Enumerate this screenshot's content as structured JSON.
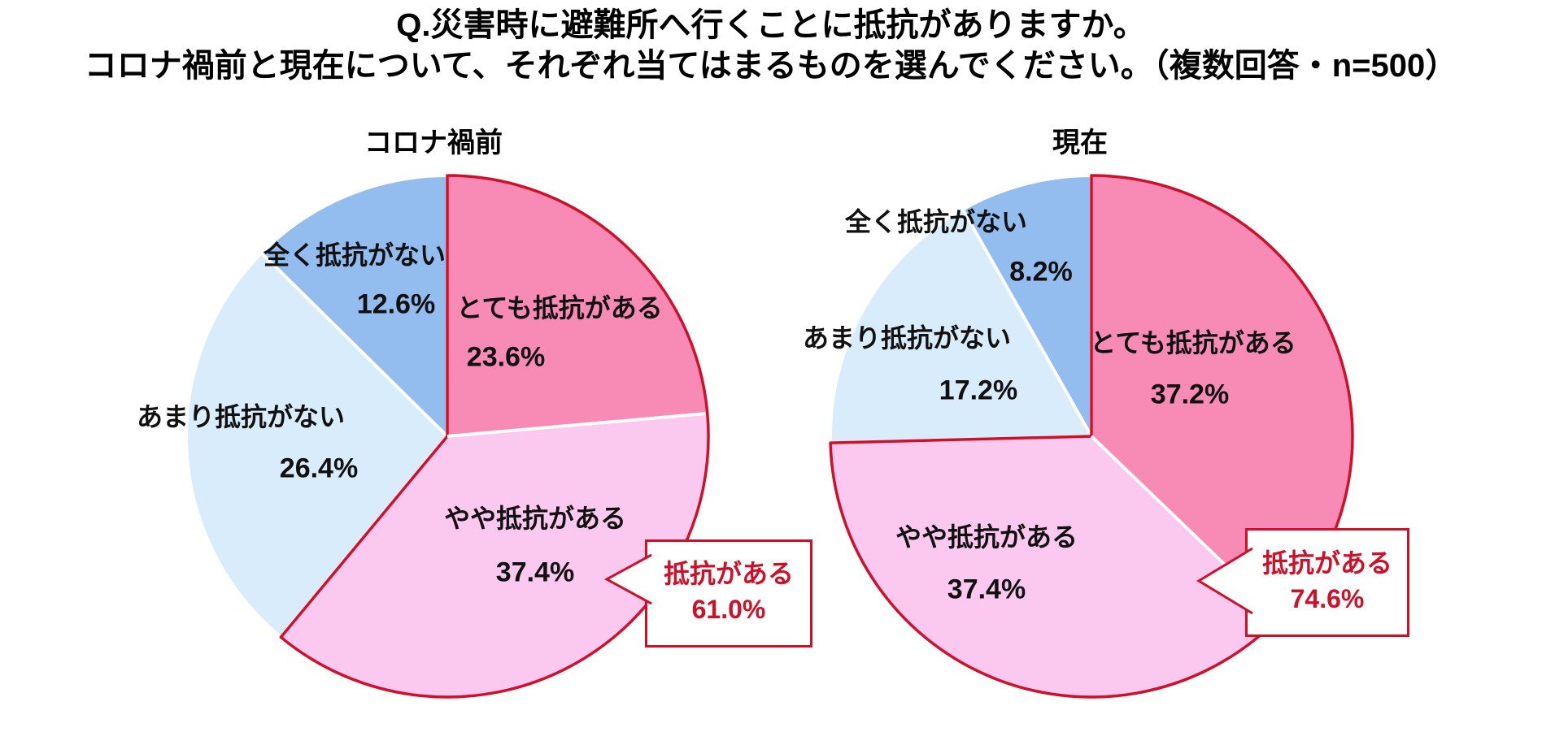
{
  "header": {
    "line1": "Q.災害時に避難所へ行くことに抵抗がありますか。",
    "line2": "コロナ禍前と現在について、それぞれ当てはまるものを選んでください。（複数回答・n=500）"
  },
  "colors": {
    "accent_red": "#D00F28",
    "rose_pink": "#F78BB5",
    "light_pink": "#FBC8F0",
    "pale_blue": "#D8ECFB",
    "medium_blue": "#93BCEF",
    "text_black": "#111111",
    "background": "#FFFFFF"
  },
  "chart_data": [
    {
      "type": "pie",
      "title": "コロナ禍前",
      "n": 500,
      "start_angle_deg": 0,
      "direction": "clockwise",
      "legend_position": "inside-labels",
      "slices": [
        {
          "label": "とても抵抗がある",
          "value": 23.6,
          "color": "#F78BB5",
          "border": "#D00F28"
        },
        {
          "label": "やや抵抗がある",
          "value": 37.4,
          "color": "#FBC8F0",
          "border": "#D00F28"
        },
        {
          "label": "あまり抵抗がない",
          "value": 26.4,
          "color": "#D8ECFB",
          "border": "#FFFFFF"
        },
        {
          "label": "全く抵抗がない",
          "value": 12.6,
          "color": "#93BCEF",
          "border": "#FFFFFF"
        }
      ],
      "callout": {
        "label": "抵抗がある",
        "value": 61.0
      }
    },
    {
      "type": "pie",
      "title": "現在",
      "n": 500,
      "start_angle_deg": 0,
      "direction": "clockwise",
      "legend_position": "inside-labels",
      "slices": [
        {
          "label": "とても抵抗がある",
          "value": 37.2,
          "color": "#F78BB5",
          "border": "#D00F28"
        },
        {
          "label": "やや抵抗がある",
          "value": 37.4,
          "color": "#FBC8F0",
          "border": "#D00F28"
        },
        {
          "label": "あまり抵抗がない",
          "value": 17.2,
          "color": "#D8ECFB",
          "border": "#FFFFFF"
        },
        {
          "label": "全く抵抗がない",
          "value": 8.2,
          "color": "#93BCEF",
          "border": "#FFFFFF"
        }
      ],
      "callout": {
        "label": "抵抗がある",
        "value": 74.6
      }
    }
  ]
}
